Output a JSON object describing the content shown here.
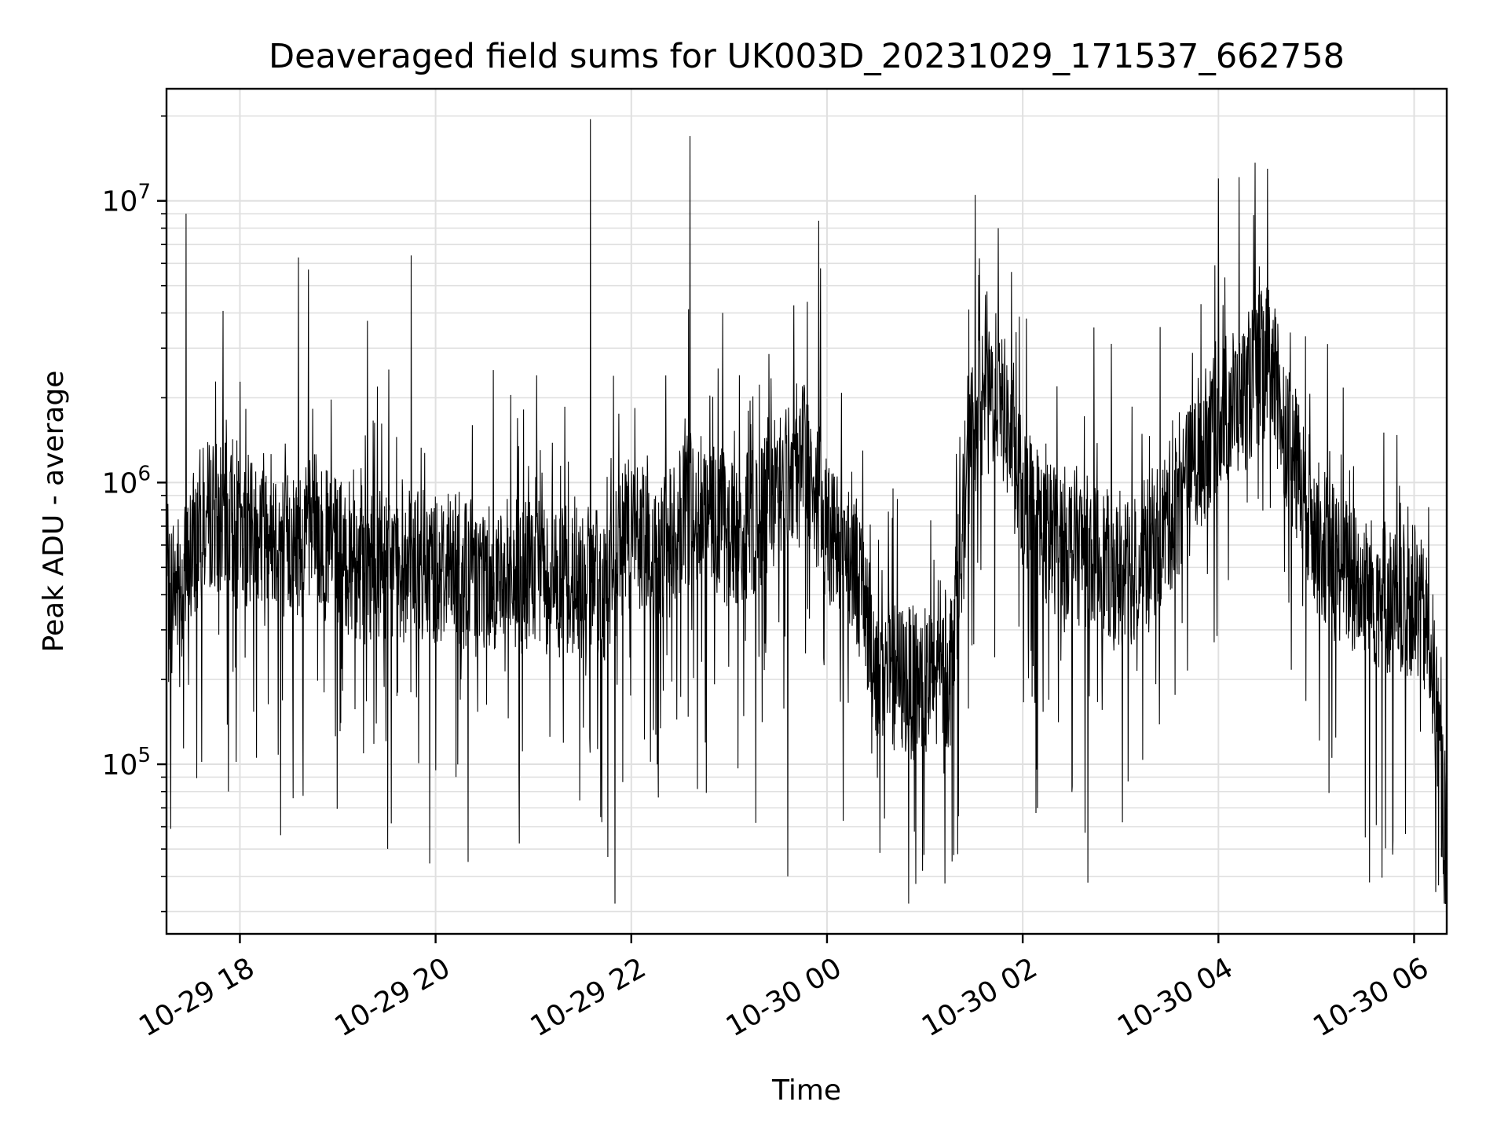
{
  "chart_data": {
    "type": "line",
    "title": "Deaveraged field sums for UK003D_20231029_171537_662758",
    "xlabel": "Time",
    "ylabel": "Peak ADU - average",
    "y_scale": "log",
    "ylim": [
      25000,
      25000000
    ],
    "xlim": [
      "2023-10-29 17:15",
      "2023-10-30 06:20"
    ],
    "grid": true,
    "legend": "none",
    "line_color": "#000000",
    "grid_color": "#e0e0e0",
    "x_ticks": [
      {
        "label": "10-29 18",
        "x": "2023-10-29 18:00"
      },
      {
        "label": "10-29 20",
        "x": "2023-10-29 20:00"
      },
      {
        "label": "10-29 22",
        "x": "2023-10-29 22:00"
      },
      {
        "label": "10-30 00",
        "x": "2023-10-30 00:00"
      },
      {
        "label": "10-30 02",
        "x": "2023-10-30 02:00"
      },
      {
        "label": "10-30 04",
        "x": "2023-10-30 04:00"
      },
      {
        "label": "10-30 06",
        "x": "2023-10-30 06:00"
      }
    ],
    "y_ticks": [
      {
        "base": "10",
        "exp": "5",
        "value": 100000
      },
      {
        "base": "10",
        "exp": "6",
        "value": 1000000
      },
      {
        "base": "10",
        "exp": "7",
        "value": 10000000
      }
    ],
    "series": [
      {
        "x": [
          "2023-10-29 17:15",
          "2023-10-29 17:25",
          "2023-10-29 17:35",
          "2023-10-29 17:45",
          "2023-10-29 18:00",
          "2023-10-29 18:15",
          "2023-10-29 18:30",
          "2023-10-29 18:45",
          "2023-10-29 19:00",
          "2023-10-29 19:15",
          "2023-10-29 19:30",
          "2023-10-29 19:45",
          "2023-10-29 20:00",
          "2023-10-29 20:15",
          "2023-10-29 20:30",
          "2023-10-29 20:45",
          "2023-10-29 21:00",
          "2023-10-29 21:15",
          "2023-10-29 21:30",
          "2023-10-29 21:45",
          "2023-10-29 22:00",
          "2023-10-29 22:15",
          "2023-10-29 22:30",
          "2023-10-29 22:45",
          "2023-10-29 23:00",
          "2023-10-29 23:15",
          "2023-10-29 23:30",
          "2023-10-29 23:45",
          "2023-10-30 00:00",
          "2023-10-30 00:15",
          "2023-10-30 00:30",
          "2023-10-30 00:45",
          "2023-10-30 01:00",
          "2023-10-30 01:15",
          "2023-10-30 01:30",
          "2023-10-30 01:45",
          "2023-10-30 02:00",
          "2023-10-30 02:15",
          "2023-10-30 02:30",
          "2023-10-30 02:45",
          "2023-10-30 03:00",
          "2023-10-30 03:15",
          "2023-10-30 03:30",
          "2023-10-30 03:45",
          "2023-10-30 04:00",
          "2023-10-30 04:15",
          "2023-10-30 04:30",
          "2023-10-30 04:45",
          "2023-10-30 05:00",
          "2023-10-30 05:15",
          "2023-10-30 05:30",
          "2023-10-30 05:45",
          "2023-10-30 06:00",
          "2023-10-30 06:10",
          "2023-10-30 06:20"
        ],
        "y": [
          450000,
          420000,
          700000,
          800000,
          650000,
          750000,
          600000,
          650000,
          550000,
          520000,
          520000,
          500000,
          500000,
          480000,
          480000,
          470000,
          460000,
          450000,
          440000,
          430000,
          700000,
          520000,
          700000,
          900000,
          650000,
          700000,
          950000,
          1300000,
          700000,
          600000,
          230000,
          200000,
          190000,
          210000,
          1700000,
          2200000,
          900000,
          650000,
          600000,
          550000,
          450000,
          550000,
          750000,
          1100000,
          1800000,
          2000000,
          2800000,
          1300000,
          650000,
          500000,
          420000,
          380000,
          380000,
          280000,
          50000
        ],
        "peaks": [
          {
            "x": "2023-10-29 17:27",
            "y": 9000000
          },
          {
            "x": "2023-10-29 18:36",
            "y": 6300000
          },
          {
            "x": "2023-10-29 18:42",
            "y": 5700000
          },
          {
            "x": "2023-10-29 19:45",
            "y": 6400000
          },
          {
            "x": "2023-10-29 21:35",
            "y": 19500000
          },
          {
            "x": "2023-10-29 22:36",
            "y": 17000000
          },
          {
            "x": "2023-10-29 23:55",
            "y": 8500000
          },
          {
            "x": "2023-10-30 01:45",
            "y": 8000000
          },
          {
            "x": "2023-10-30 04:00",
            "y": 12000000
          },
          {
            "x": "2023-10-30 04:30",
            "y": 13000000
          }
        ],
        "troughs": [
          {
            "x": "2023-10-29 17:53",
            "y": 80000
          },
          {
            "x": "2023-10-29 18:25",
            "y": 56000
          },
          {
            "x": "2023-10-29 20:20",
            "y": 45000
          },
          {
            "x": "2023-10-29 21:50",
            "y": 32000
          },
          {
            "x": "2023-10-29 23:36",
            "y": 40000
          },
          {
            "x": "2023-10-30 00:50",
            "y": 32000
          },
          {
            "x": "2023-10-30 02:40",
            "y": 38000
          },
          {
            "x": "2023-10-30 05:30",
            "y": 55000
          },
          {
            "x": "2023-10-30 06:20",
            "y": 35000
          }
        ]
      }
    ]
  }
}
